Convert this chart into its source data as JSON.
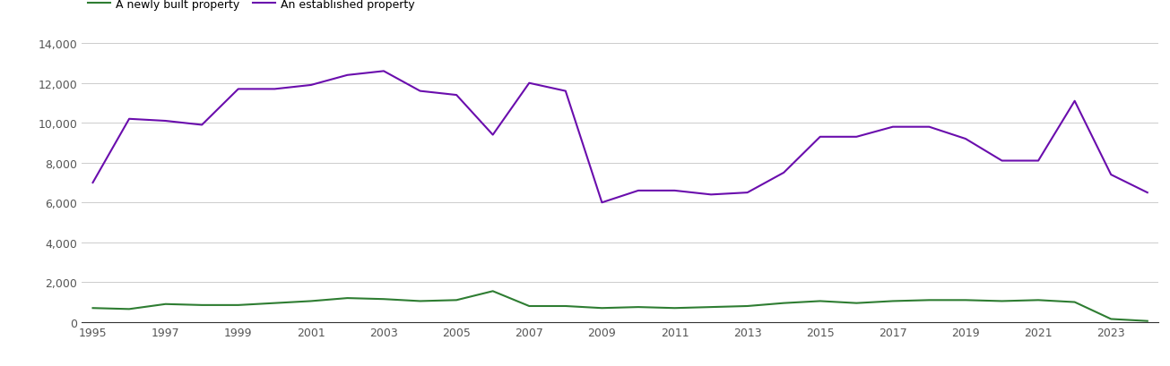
{
  "years": [
    1995,
    1996,
    1997,
    1998,
    1999,
    2000,
    2001,
    2002,
    2003,
    2004,
    2005,
    2006,
    2007,
    2008,
    2009,
    2010,
    2011,
    2012,
    2013,
    2014,
    2015,
    2016,
    2017,
    2018,
    2019,
    2020,
    2021,
    2022,
    2023,
    2024
  ],
  "newly_built": [
    700,
    650,
    900,
    850,
    850,
    950,
    1050,
    1200,
    1150,
    1050,
    1100,
    1550,
    800,
    800,
    700,
    750,
    700,
    750,
    800,
    950,
    1050,
    950,
    1050,
    1100,
    1100,
    1050,
    1100,
    1000,
    150,
    50
  ],
  "established": [
    7000,
    10200,
    10100,
    9900,
    11700,
    11700,
    11900,
    12400,
    12600,
    11600,
    11400,
    9400,
    12000,
    11600,
    6000,
    6600,
    6600,
    6400,
    6500,
    7500,
    9300,
    9300,
    9800,
    9800,
    9200,
    8100,
    8100,
    11100,
    7400,
    6500
  ],
  "newly_built_color": "#2e7d32",
  "established_color": "#6a0dad",
  "legend_labels": [
    "A newly built property",
    "An established property"
  ],
  "ylim": [
    0,
    14000
  ],
  "yticks": [
    0,
    2000,
    4000,
    6000,
    8000,
    10000,
    12000,
    14000
  ],
  "background_color": "#ffffff",
  "grid_color": "#cccccc",
  "tick_label_color": "#555555",
  "line_width": 1.5,
  "figsize": [
    13.05,
    4.1
  ],
  "dpi": 100
}
